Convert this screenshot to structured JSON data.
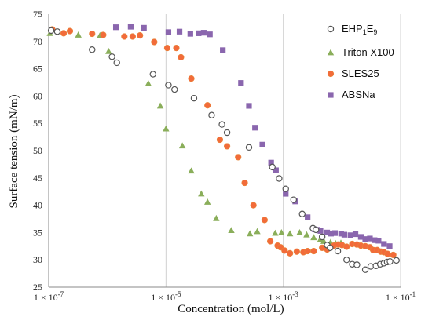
{
  "chart_data": {
    "type": "scatter",
    "xlabel": "Concentration (mol/L)",
    "ylabel": "Surface tension (mN/m)",
    "x_scale": "log",
    "xlim": [
      1e-07,
      0.1
    ],
    "ylim": [
      25,
      75
    ],
    "x_tick_labels": [
      "1 × 10",
      "1 × 10",
      "1 × 10",
      "1 × 10"
    ],
    "x_tick_exponents": [
      "-7",
      "-5",
      "-3",
      "-1"
    ],
    "x_ticks": [
      1e-07,
      1e-05,
      0.001,
      0.1
    ],
    "y_ticks": [
      25,
      30,
      35,
      40,
      45,
      50,
      55,
      60,
      65,
      70,
      75
    ],
    "grid": "vertical",
    "legend_position": "top-right",
    "series": [
      {
        "name": "EHP",
        "name_sub": "1",
        "name_tail": "E",
        "name_sub2": "9",
        "marker": "open-circle",
        "color": "#555555",
        "points": [
          [
            1.1e-07,
            72
          ],
          [
            1.4e-07,
            71.8
          ],
          [
            5.5e-07,
            68.5
          ],
          [
            1.2e-06,
            67.2
          ],
          [
            1.45e-06,
            66.1
          ],
          [
            6e-06,
            64
          ],
          [
            1.1e-05,
            62
          ],
          [
            1.4e-05,
            61.2
          ],
          [
            3e-05,
            59.6
          ],
          [
            6e-05,
            56.5
          ],
          [
            9e-05,
            54.8
          ],
          [
            0.00011,
            53.3
          ],
          [
            0.00026,
            50.6
          ],
          [
            0.00065,
            47
          ],
          [
            0.00085,
            44.9
          ],
          [
            0.0011,
            43
          ],
          [
            0.0015,
            41
          ],
          [
            0.0021,
            38.4
          ],
          [
            0.0032,
            35.8
          ],
          [
            0.0036,
            35.5
          ],
          [
            0.0046,
            34.2
          ],
          [
            0.0056,
            32.7
          ],
          [
            0.0063,
            32.2
          ],
          [
            0.0085,
            31.6
          ],
          [
            0.012,
            30
          ],
          [
            0.015,
            29.2
          ],
          [
            0.018,
            29.1
          ],
          [
            0.025,
            28.2
          ],
          [
            0.031,
            28.8
          ],
          [
            0.038,
            28.9
          ],
          [
            0.045,
            29.2
          ],
          [
            0.052,
            29.4
          ],
          [
            0.059,
            29.6
          ],
          [
            0.066,
            29.7
          ],
          [
            0.085,
            29.9
          ]
        ]
      },
      {
        "name": "Triton X100",
        "marker": "triangle",
        "color": "#8aae5a",
        "points": [
          [
            1.05e-07,
            71.5
          ],
          [
            3.2e-07,
            71.2
          ],
          [
            7.5e-07,
            71.1
          ],
          [
            1.05e-06,
            68.2
          ],
          [
            5e-06,
            62.3
          ],
          [
            8e-06,
            58.2
          ],
          [
            1e-05,
            54
          ],
          [
            1.9e-05,
            50.9
          ],
          [
            2.7e-05,
            46.3
          ],
          [
            4e-05,
            42.1
          ],
          [
            5.1e-05,
            40.6
          ],
          [
            7.2e-05,
            37.6
          ],
          [
            0.00013,
            35.4
          ],
          [
            0.00027,
            34.8
          ],
          [
            0.00036,
            35.2
          ],
          [
            0.00073,
            34.9
          ],
          [
            0.00093,
            35
          ],
          [
            0.0013,
            34.8
          ],
          [
            0.0019,
            35
          ],
          [
            0.0025,
            34.6
          ],
          [
            0.0033,
            34.1
          ],
          [
            0.0043,
            33.8
          ],
          [
            0.0049,
            33.4
          ],
          [
            0.0064,
            33.2
          ],
          [
            0.0078,
            33
          ],
          [
            0.0096,
            33.1
          ]
        ]
      },
      {
        "name": "SLES25",
        "marker": "circle",
        "color": "#f26b3a",
        "points": [
          [
            1.15e-07,
            72.2
          ],
          [
            1.8e-07,
            71.5
          ],
          [
            2.3e-07,
            71.9
          ],
          [
            5.5e-07,
            71.4
          ],
          [
            8.5e-07,
            71.2
          ],
          [
            1.95e-06,
            70.9
          ],
          [
            2.7e-06,
            70.9
          ],
          [
            3.6e-06,
            71.1
          ],
          [
            6.3e-06,
            69.9
          ],
          [
            1.05e-05,
            68.8
          ],
          [
            1.5e-05,
            68.8
          ],
          [
            1.8e-05,
            67.1
          ],
          [
            2.7e-05,
            63.2
          ],
          [
            5.1e-05,
            58.3
          ],
          [
            8.3e-05,
            52
          ],
          [
            0.00011,
            50.8
          ],
          [
            0.00017,
            48.8
          ],
          [
            0.00022,
            44.1
          ],
          [
            0.00031,
            40
          ],
          [
            0.00048,
            37.3
          ],
          [
            0.0006,
            33.4
          ],
          [
            0.0008,
            32.6
          ],
          [
            0.0009,
            32.3
          ],
          [
            0.00105,
            31.7
          ],
          [
            0.0013,
            31.2
          ],
          [
            0.0017,
            31.5
          ],
          [
            0.0022,
            31.4
          ],
          [
            0.0026,
            31.6
          ],
          [
            0.0033,
            31.6
          ],
          [
            0.0046,
            32.2
          ],
          [
            0.0056,
            31.9
          ],
          [
            0.0062,
            32.2
          ],
          [
            0.0073,
            32.6
          ],
          [
            0.0086,
            32.8
          ],
          [
            0.01,
            32.7
          ],
          [
            0.012,
            32.4
          ],
          [
            0.015,
            32.9
          ],
          [
            0.018,
            32.8
          ],
          [
            0.021,
            32.6
          ],
          [
            0.025,
            32.5
          ],
          [
            0.03,
            32.3
          ],
          [
            0.034,
            31.8
          ],
          [
            0.04,
            31.8
          ],
          [
            0.046,
            31.5
          ],
          [
            0.052,
            31.4
          ],
          [
            0.06,
            31.1
          ],
          [
            0.075,
            30.9
          ]
        ]
      },
      {
        "name": "ABSNa",
        "marker": "square",
        "color": "#8a66ae",
        "points": [
          [
            1.4e-06,
            72.6
          ],
          [
            2.5e-06,
            72.7
          ],
          [
            4.2e-06,
            72.5
          ],
          [
            1.1e-05,
            71.7
          ],
          [
            1.7e-05,
            71.8
          ],
          [
            2.6e-05,
            71.4
          ],
          [
            3.6e-05,
            71.5
          ],
          [
            4.4e-05,
            71.6
          ],
          [
            5.6e-05,
            71.3
          ],
          [
            9.3e-05,
            68.4
          ],
          [
            0.00019,
            62.4
          ],
          [
            0.00026,
            58.2
          ],
          [
            0.00033,
            54.2
          ],
          [
            0.00044,
            51.1
          ],
          [
            0.00062,
            47.8
          ],
          [
            0.00075,
            46.4
          ],
          [
            0.0011,
            42.1
          ],
          [
            0.0016,
            40.7
          ],
          [
            0.0026,
            37.8
          ],
          [
            0.0034,
            35.6
          ],
          [
            0.0038,
            35.5
          ],
          [
            0.0043,
            35.3
          ],
          [
            0.0056,
            35
          ],
          [
            0.0065,
            34.8
          ],
          [
            0.0076,
            34.9
          ],
          [
            0.0097,
            34.8
          ],
          [
            0.011,
            34.6
          ],
          [
            0.014,
            34.5
          ],
          [
            0.017,
            34.7
          ],
          [
            0.021,
            34.2
          ],
          [
            0.025,
            33.8
          ],
          [
            0.03,
            33.9
          ],
          [
            0.036,
            33.6
          ],
          [
            0.042,
            33.5
          ],
          [
            0.052,
            32.9
          ],
          [
            0.065,
            32.5
          ]
        ]
      }
    ]
  }
}
